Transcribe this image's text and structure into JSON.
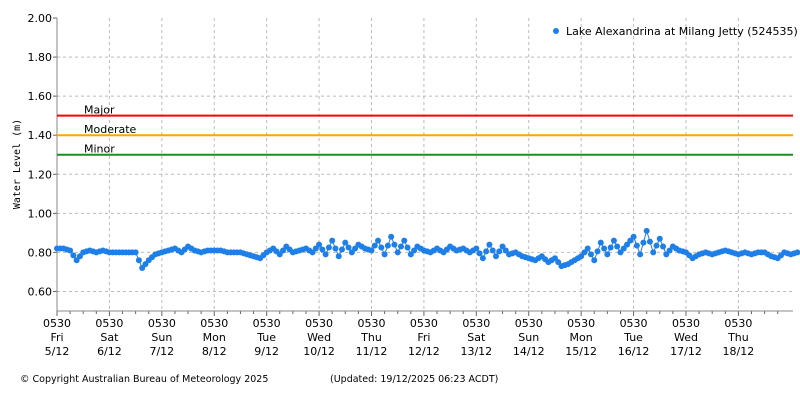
{
  "chart_data": {
    "type": "scatter",
    "title": "",
    "ylabel": "Water Level (m)",
    "ylim": [
      0.5,
      2.0
    ],
    "yticks": [
      "2.00",
      "1.80",
      "1.60",
      "1.40",
      "1.20",
      "1.00",
      "0.80",
      "0.60"
    ],
    "ytick_values": [
      2.0,
      1.8,
      1.6,
      1.4,
      1.2,
      1.0,
      0.8,
      0.6
    ],
    "x_hours_max": 337,
    "xticks": [
      {
        "time": "0530",
        "day": "Fri",
        "date": "5/12"
      },
      {
        "time": "0530",
        "day": "Sat",
        "date": "6/12"
      },
      {
        "time": "0530",
        "day": "Sun",
        "date": "7/12"
      },
      {
        "time": "0530",
        "day": "Mon",
        "date": "8/12"
      },
      {
        "time": "0530",
        "day": "Tue",
        "date": "9/12"
      },
      {
        "time": "0530",
        "day": "Wed",
        "date": "10/12"
      },
      {
        "time": "0530",
        "day": "Thu",
        "date": "11/12"
      },
      {
        "time": "0530",
        "day": "Fri",
        "date": "12/12"
      },
      {
        "time": "0530",
        "day": "Sat",
        "date": "13/12"
      },
      {
        "time": "0530",
        "day": "Sun",
        "date": "14/12"
      },
      {
        "time": "0530",
        "day": "Mon",
        "date": "15/12"
      },
      {
        "time": "0530",
        "day": "Tue",
        "date": "16/12"
      },
      {
        "time": "0530",
        "day": "Wed",
        "date": "17/12"
      },
      {
        "time": "0530",
        "day": "Thu",
        "date": "18/12"
      }
    ],
    "thresholds": [
      {
        "label": "Major",
        "value": 1.5,
        "color": "#ff0000"
      },
      {
        "label": "Moderate",
        "value": 1.4,
        "color": "#ffa500"
      },
      {
        "label": "Minor",
        "value": 1.3,
        "color": "#228b22"
      }
    ],
    "legend": {
      "label": "Lake Alexandrina at Milang Jetty (524535)",
      "placement": "top-right"
    },
    "series": [
      {
        "name": "Lake Alexandrina at Milang Jetty (524535)",
        "color": "#1e7fe8",
        "interval_hours": 3,
        "values": [
          0.82,
          0.82,
          0.81,
          0.76,
          0.8,
          0.81,
          0.8,
          0.81,
          0.8,
          0.8,
          0.8,
          0.8,
          0.8,
          0.72,
          0.76,
          0.79,
          0.8,
          0.81,
          0.82,
          0.8,
          0.83,
          0.81,
          0.8,
          0.81,
          0.81,
          0.81,
          0.8,
          0.8,
          0.8,
          0.79,
          0.78,
          0.77,
          0.8,
          0.82,
          0.79,
          0.83,
          0.8,
          0.81,
          0.82,
          0.8,
          0.84,
          0.79,
          0.86,
          0.78,
          0.85,
          0.8,
          0.84,
          0.82,
          0.81,
          0.86,
          0.79,
          0.88,
          0.8,
          0.86,
          0.79,
          0.83,
          0.81,
          0.8,
          0.82,
          0.8,
          0.83,
          0.81,
          0.82,
          0.8,
          0.82,
          0.77,
          0.84,
          0.78,
          0.83,
          0.79,
          0.8,
          0.78,
          0.77,
          0.76,
          0.78,
          0.75,
          0.77,
          0.73,
          0.74,
          0.76,
          0.78,
          0.82,
          0.76,
          0.85,
          0.79,
          0.86,
          0.8,
          0.84,
          0.88,
          0.79,
          0.91,
          0.8,
          0.87,
          0.79,
          0.83,
          0.81,
          0.8,
          0.77,
          0.79,
          0.8,
          0.79,
          0.8,
          0.81,
          0.8,
          0.79,
          0.8,
          0.79,
          0.8,
          0.8,
          0.78,
          0.77,
          0.8,
          0.79,
          0.8
        ]
      }
    ]
  },
  "footer": {
    "copyright": "© Copyright Australian Bureau of Meteorology 2025",
    "updated": "(Updated: 19/12/2025 06:23 ACDT)"
  }
}
